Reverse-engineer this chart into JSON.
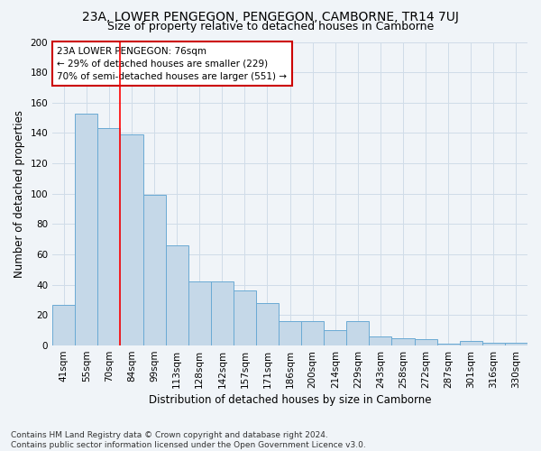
{
  "title": "23A, LOWER PENGEGON, PENGEGON, CAMBORNE, TR14 7UJ",
  "subtitle": "Size of property relative to detached houses in Camborne",
  "xlabel": "Distribution of detached houses by size in Camborne",
  "ylabel": "Number of detached properties",
  "categories": [
    "41sqm",
    "55sqm",
    "70sqm",
    "84sqm",
    "99sqm",
    "113sqm",
    "128sqm",
    "142sqm",
    "157sqm",
    "171sqm",
    "186sqm",
    "200sqm",
    "214sqm",
    "229sqm",
    "243sqm",
    "258sqm",
    "272sqm",
    "287sqm",
    "301sqm",
    "316sqm",
    "330sqm"
  ],
  "values": [
    27,
    153,
    143,
    139,
    99,
    66,
    42,
    42,
    36,
    28,
    16,
    16,
    10,
    16,
    6,
    5,
    4,
    1,
    3,
    2,
    2
  ],
  "bar_color": "#c5d8e8",
  "bar_edge_color": "#6aaad4",
  "red_line_x": 2,
  "annotation_text_line1": "23A LOWER PENGEGON: 76sqm",
  "annotation_text_line2": "← 29% of detached houses are smaller (229)",
  "annotation_text_line3": "70% of semi-detached houses are larger (551) →",
  "annotation_box_color": "#ffffff",
  "annotation_box_edge": "#cc0000",
  "footer_line1": "Contains HM Land Registry data © Crown copyright and database right 2024.",
  "footer_line2": "Contains public sector information licensed under the Open Government Licence v3.0.",
  "ylim": [
    0,
    200
  ],
  "yticks": [
    0,
    20,
    40,
    60,
    80,
    100,
    120,
    140,
    160,
    180,
    200
  ],
  "bg_color": "#f0f4f8",
  "grid_color": "#d0dce8",
  "title_fontsize": 10,
  "subtitle_fontsize": 9,
  "axis_label_fontsize": 8.5,
  "tick_fontsize": 7.5,
  "footer_fontsize": 6.5
}
